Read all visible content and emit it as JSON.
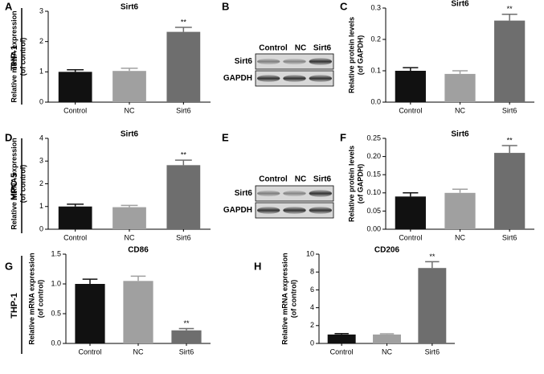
{
  "chart_data": [
    {
      "type": "bar",
      "letter": "A",
      "title": "Sirt6",
      "ylabel": [
        "Relative mRNA expression",
        "(of control)"
      ],
      "categories": [
        "Control",
        "NC",
        "Sirt6"
      ],
      "values": [
        1.0,
        1.03,
        2.32
      ],
      "errors": [
        0.07,
        0.09,
        0.15
      ],
      "colors": [
        "#111111",
        "#a0a0a0",
        "#6e6e6e"
      ],
      "annotations": [
        null,
        null,
        "**"
      ],
      "ylim": [
        0,
        3
      ],
      "yticks": [
        0,
        1,
        2,
        3
      ]
    },
    {
      "type": "bar",
      "letter": "C",
      "title": "Sirt6",
      "ylabel": [
        "Relative protein levels",
        "(of GAPDH)"
      ],
      "categories": [
        "Control",
        "NC",
        "Sirt6"
      ],
      "values": [
        0.1,
        0.09,
        0.26
      ],
      "errors": [
        0.01,
        0.01,
        0.02
      ],
      "colors": [
        "#111111",
        "#a0a0a0",
        "#6e6e6e"
      ],
      "annotations": [
        null,
        null,
        "**"
      ],
      "ylim": [
        0,
        0.3
      ],
      "yticks": [
        {
          "value": 0,
          "label": "0.0"
        },
        0.1,
        0.2,
        0.3
      ]
    },
    {
      "type": "bar",
      "letter": "D",
      "title": "Sirt6",
      "ylabel": [
        "Relative mRNA expression",
        "(of control)"
      ],
      "categories": [
        "Control",
        "NC",
        "Sirt6"
      ],
      "values": [
        1.0,
        0.97,
        2.82
      ],
      "errors": [
        0.1,
        0.08,
        0.22
      ],
      "colors": [
        "#111111",
        "#a0a0a0",
        "#6e6e6e"
      ],
      "annotations": [
        null,
        null,
        "**"
      ],
      "ylim": [
        0,
        4
      ],
      "yticks": [
        0,
        1,
        2,
        3,
        4
      ]
    },
    {
      "type": "bar",
      "letter": "F",
      "title": "Sirt6",
      "ylabel": [
        "Relative protein levels",
        "(of GAPDH)"
      ],
      "categories": [
        "Control",
        "NC",
        "Sirt6"
      ],
      "values": [
        0.09,
        0.1,
        0.21
      ],
      "errors": [
        0.01,
        0.01,
        0.02
      ],
      "colors": [
        "#111111",
        "#a0a0a0",
        "#6e6e6e"
      ],
      "annotations": [
        null,
        null,
        "**"
      ],
      "ylim": [
        0,
        0.25
      ],
      "yticks": [
        {
          "value": 0,
          "label": "0.00"
        },
        0.05,
        {
          "value": 0.1,
          "label": "0.10"
        },
        0.15,
        {
          "value": 0.2,
          "label": "0.20"
        },
        0.25
      ]
    },
    {
      "type": "bar",
      "letter": "G",
      "title": "CD86",
      "ylabel": [
        "Relative mRNA expression",
        "(of control)"
      ],
      "categories": [
        "Control",
        "NC",
        "Sirt6"
      ],
      "values": [
        1.0,
        1.05,
        0.22
      ],
      "errors": [
        0.08,
        0.08,
        0.03
      ],
      "colors": [
        "#111111",
        "#a0a0a0",
        "#6e6e6e"
      ],
      "annotations": [
        null,
        null,
        "**"
      ],
      "ylim": [
        0,
        1.5
      ],
      "yticks": [
        {
          "value": 0,
          "label": "0.0"
        },
        0.5,
        {
          "value": 1,
          "label": "1.0"
        },
        1.5
      ]
    },
    {
      "type": "bar",
      "letter": "H",
      "title": "CD206",
      "ylabel": [
        "Relative mRNA expression",
        "(of control)"
      ],
      "categories": [
        "Control",
        "NC",
        "Sirt6"
      ],
      "values": [
        1.0,
        1.0,
        8.45
      ],
      "errors": [
        0.1,
        0.08,
        0.7
      ],
      "colors": [
        "#111111",
        "#a0a0a0",
        "#6e6e6e"
      ],
      "annotations": [
        null,
        null,
        "**"
      ],
      "ylim": [
        0,
        10
      ],
      "yticks": [
        0,
        2,
        4,
        6,
        8,
        10
      ]
    }
  ],
  "blots": [
    {
      "letter": "B",
      "lanes": [
        "Control",
        "NC",
        "Sirt6"
      ],
      "rows": [
        "Sirt6",
        "GAPDH"
      ]
    },
    {
      "letter": "E",
      "lanes": [
        "Control",
        "NC",
        "Sirt6"
      ],
      "rows": [
        "Sirt6",
        "GAPDH"
      ]
    }
  ],
  "row_labels": [
    "THP-1",
    "MPC-5",
    "THP-1"
  ]
}
